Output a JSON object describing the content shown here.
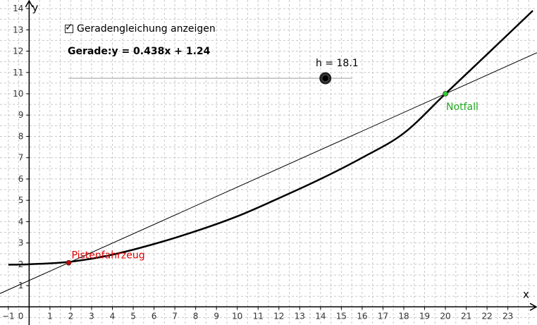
{
  "checkbox": {
    "label": "Geradengleichung anzeigen",
    "checked": true,
    "check_glyph": "✓"
  },
  "equation_text": "Gerade:y = 0.438x + 1.24",
  "slider": {
    "label": "h = 18.1",
    "value": 18.1
  },
  "colors": {
    "grid": "#c8c8c8",
    "axis": "#000000",
    "curve": "#000000",
    "line": "#000000",
    "point_red": "#cc0000",
    "point_green": "#33cc33",
    "label_red": "#e00000",
    "label_green": "#22aa22"
  },
  "chart_data": {
    "type": "line",
    "xlabel": "x",
    "ylabel": "y",
    "xlim": [
      -1.4,
      24.4
    ],
    "ylim": [
      -0.85,
      14.4
    ],
    "grid": true,
    "x_ticks": [
      -1,
      1,
      2,
      3,
      4,
      5,
      6,
      7,
      8,
      9,
      10,
      11,
      12,
      13,
      14,
      15,
      16,
      17,
      18,
      19,
      20,
      21,
      22,
      23
    ],
    "y_ticks": [
      1,
      2,
      3,
      4,
      5,
      6,
      7,
      8,
      9,
      10,
      11,
      12,
      13,
      14
    ],
    "origin_label": "0",
    "curve": {
      "x": [
        -1,
        0,
        2,
        4,
        6,
        8,
        10,
        12,
        14,
        16,
        18,
        20,
        22,
        24.2
      ],
      "y": [
        1.98,
        2.0,
        2.12,
        2.45,
        2.95,
        3.55,
        4.25,
        5.1,
        6.0,
        7.0,
        8.15,
        10.0,
        11.85,
        13.9
      ]
    },
    "line": {
      "slope": 0.438,
      "intercept": 1.24
    },
    "points": [
      {
        "name": "Pistenfahrzeug",
        "x": 1.9,
        "y": 2.07,
        "color": "point_red"
      },
      {
        "name": "Notfall",
        "x": 20.0,
        "y": 10.0,
        "color": "point_green"
      }
    ]
  }
}
